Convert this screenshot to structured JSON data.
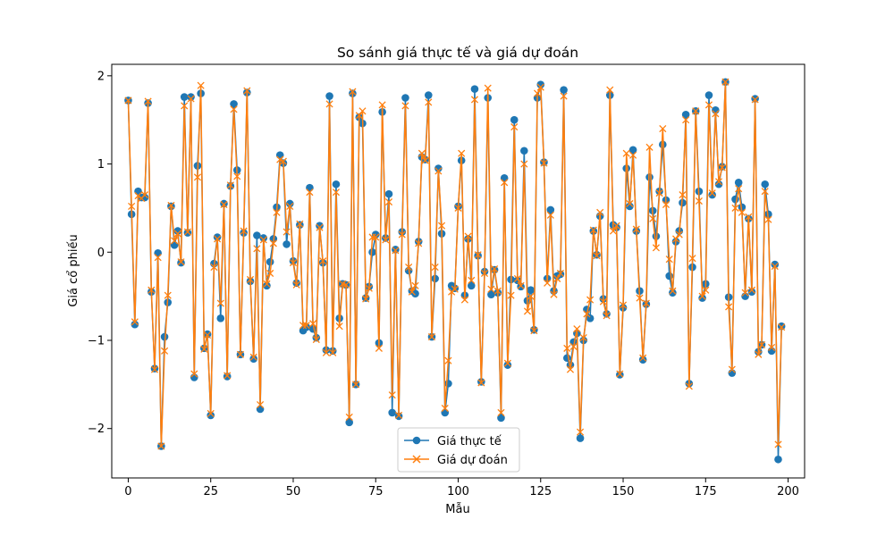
{
  "chart_data": {
    "type": "line",
    "title": "So sánh giá thực tế và giá dự đoán",
    "xlabel": "Mẫu",
    "ylabel": "Giá cổ phiếu",
    "xlim": [
      -5,
      205
    ],
    "ylim": [
      -2.56,
      2.13
    ],
    "xticks": [
      0,
      25,
      50,
      75,
      100,
      125,
      150,
      175,
      200
    ],
    "yticks": [
      -2,
      -1,
      0,
      1,
      2
    ],
    "xtick_labels": [
      "0",
      "25",
      "50",
      "75",
      "100",
      "125",
      "150",
      "175",
      "200"
    ],
    "ytick_labels": [
      "−2",
      "−1",
      "0",
      "1",
      "2"
    ],
    "grid": false,
    "legend_position": "bottom-center",
    "series": [
      {
        "name": "Giá thực tế",
        "color": "#1f77b4",
        "marker": "circle",
        "values": [
          1.72,
          0.43,
          -0.82,
          0.69,
          0.62,
          0.62,
          1.69,
          -0.45,
          -1.32,
          -0.01,
          -2.2,
          -0.96,
          -0.57,
          0.52,
          0.08,
          0.24,
          -0.12,
          1.76,
          0.22,
          1.76,
          -1.42,
          0.98,
          1.8,
          -1.09,
          -0.93,
          -1.85,
          -0.13,
          0.17,
          -0.75,
          0.55,
          -1.41,
          0.75,
          1.68,
          0.93,
          -1.16,
          0.22,
          1.81,
          -0.33,
          -1.21,
          0.19,
          -1.78,
          0.16,
          -0.38,
          -0.11,
          0.15,
          0.51,
          1.1,
          1.01,
          0.09,
          0.55,
          -0.1,
          -0.35,
          0.31,
          -0.89,
          -0.85,
          0.73,
          -0.87,
          -0.97,
          0.3,
          -0.12,
          -1.11,
          1.77,
          -1.12,
          0.77,
          -0.75,
          -0.36,
          -0.37,
          -1.93,
          1.8,
          -1.5,
          1.53,
          1.46,
          -0.52,
          -0.39,
          0.0,
          0.2,
          -1.03,
          1.59,
          0.16,
          0.66,
          -1.82,
          0.03,
          -1.86,
          0.23,
          1.75,
          -0.21,
          -0.44,
          -0.47,
          0.12,
          1.08,
          1.05,
          1.78,
          -0.96,
          -0.3,
          0.95,
          0.21,
          -1.82,
          -1.49,
          -0.38,
          -0.41,
          0.52,
          1.04,
          -0.49,
          0.15,
          -0.38,
          1.85,
          -0.04,
          -1.47,
          -0.22,
          1.75,
          -0.48,
          -0.2,
          -0.46,
          -1.88,
          0.84,
          -1.28,
          -0.31,
          1.5,
          -0.32,
          -0.39,
          1.15,
          -0.55,
          -0.43,
          -0.88,
          1.75,
          1.9,
          1.02,
          -0.3,
          0.48,
          -0.44,
          -0.27,
          -0.25,
          1.84,
          -1.2,
          -1.28,
          -1.02,
          -0.92,
          -2.11,
          -1.0,
          -0.65,
          -0.75,
          0.24,
          -0.03,
          0.41,
          -0.53,
          -0.7,
          1.78,
          0.31,
          0.28,
          -1.39,
          -0.63,
          0.95,
          0.52,
          1.16,
          0.24,
          -0.44,
          -1.22,
          -0.59,
          0.85,
          0.47,
          0.18,
          0.69,
          1.22,
          0.59,
          -0.27,
          -0.46,
          0.12,
          0.24,
          0.56,
          1.56,
          -1.49,
          -0.17,
          1.6,
          0.69,
          -0.52,
          -0.36,
          1.78,
          0.65,
          1.61,
          0.77,
          0.97,
          1.93,
          -0.51,
          -1.37,
          0.6,
          0.79,
          0.51,
          -0.5,
          0.38,
          -0.45,
          1.74,
          -1.13,
          -1.05,
          0.77,
          0.43,
          -1.12,
          -0.14,
          -2.35,
          -0.84
        ]
      },
      {
        "name": "Giá dự đoán",
        "color": "#ff7f0e",
        "marker": "x",
        "values": [
          1.72,
          0.52,
          -0.79,
          0.64,
          0.61,
          0.65,
          1.71,
          -0.43,
          -1.33,
          -0.06,
          -2.2,
          -1.12,
          -0.49,
          0.53,
          0.13,
          0.21,
          -0.11,
          1.66,
          0.23,
          1.74,
          -1.38,
          0.85,
          1.89,
          -1.1,
          -0.94,
          -1.83,
          -0.17,
          0.15,
          -0.58,
          0.54,
          -1.4,
          0.76,
          1.62,
          0.86,
          -1.16,
          0.24,
          1.83,
          -0.31,
          -1.19,
          0.04,
          -1.73,
          0.14,
          -0.36,
          -0.24,
          0.1,
          0.45,
          1.05,
          1.03,
          0.23,
          0.52,
          -0.12,
          -0.37,
          0.32,
          -0.83,
          -0.83,
          0.68,
          -0.81,
          -0.99,
          0.28,
          -0.1,
          -1.14,
          1.68,
          -1.14,
          0.68,
          -0.84,
          -0.36,
          -0.37,
          -1.87,
          1.82,
          -1.5,
          1.55,
          1.6,
          -0.53,
          -0.41,
          0.17,
          0.17,
          -1.09,
          1.67,
          0.14,
          0.57,
          -1.62,
          0.02,
          -1.85,
          0.2,
          1.66,
          -0.17,
          -0.45,
          -0.38,
          0.1,
          1.12,
          1.04,
          1.7,
          -0.96,
          -0.17,
          0.92,
          0.3,
          -1.77,
          -1.23,
          -0.45,
          -0.42,
          0.5,
          1.12,
          -0.54,
          0.18,
          -0.32,
          1.73,
          -0.03,
          -1.48,
          -0.24,
          1.86,
          -0.42,
          -0.19,
          -0.44,
          -1.82,
          0.79,
          -1.26,
          -0.49,
          1.42,
          -0.3,
          -0.38,
          1.0,
          -0.67,
          -0.5,
          -0.89,
          1.8,
          1.87,
          1.01,
          -0.35,
          0.42,
          -0.48,
          -0.3,
          -0.24,
          1.77,
          -1.09,
          -1.33,
          -1.07,
          -0.87,
          -2.04,
          -0.97,
          -0.7,
          -0.54,
          0.25,
          -0.04,
          0.45,
          -0.56,
          -0.72,
          1.84,
          0.24,
          0.3,
          -1.38,
          -0.6,
          1.12,
          0.55,
          1.1,
          0.26,
          -0.52,
          -1.2,
          -0.58,
          1.19,
          0.38,
          0.05,
          0.67,
          1.4,
          0.54,
          -0.08,
          -0.44,
          0.15,
          0.2,
          0.65,
          1.5,
          -1.52,
          -0.07,
          1.6,
          0.58,
          -0.5,
          -0.43,
          1.67,
          0.67,
          1.57,
          0.8,
          0.96,
          1.93,
          -0.62,
          -1.33,
          0.5,
          0.72,
          0.45,
          -0.46,
          0.4,
          -0.43,
          1.73,
          -1.16,
          -1.05,
          0.69,
          0.37,
          -1.08,
          -0.16,
          -2.18,
          -0.85
        ]
      }
    ]
  }
}
